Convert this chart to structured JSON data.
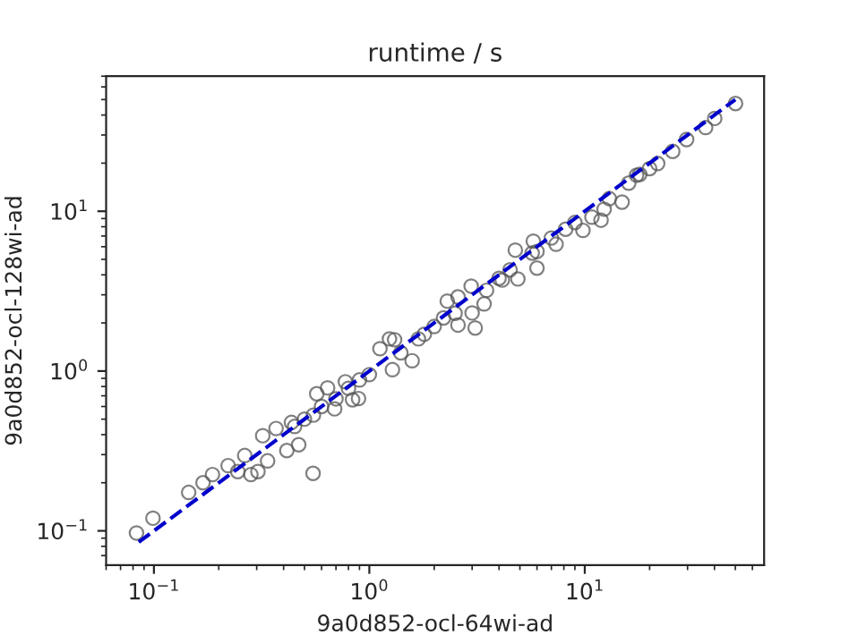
{
  "chart_data": {
    "type": "scatter",
    "title": "runtime / s",
    "xlabel": "9a0d852-ocl-64wi-ad",
    "ylabel": "9a0d852-ocl-128wi-ad",
    "log": "xy",
    "grid": false,
    "legend": false,
    "marker": "circle",
    "xlim": [
      0.06,
      68
    ],
    "ylim": [
      0.061,
      70
    ],
    "xticks": [
      {
        "value": 0.1,
        "label": "10$^{−1}$"
      },
      {
        "value": 1,
        "label": "10$^{0}$"
      },
      {
        "value": 10,
        "label": "10$^{1}$"
      }
    ],
    "yticks": [
      {
        "value": 0.1,
        "label": "10$^{−1}$"
      },
      {
        "value": 1,
        "label": "10$^{0}$"
      },
      {
        "value": 10,
        "label": "10$^{1}$"
      }
    ],
    "series": [
      {
        "color": "#555555",
        "x": [
          0.083,
          0.099,
          0.145,
          0.169,
          0.187,
          0.221,
          0.245,
          0.264,
          0.282,
          0.304,
          0.32,
          0.337,
          0.369,
          0.414,
          0.435,
          0.47,
          0.548,
          0.57,
          0.64,
          0.69,
          0.774,
          0.836,
          0.891,
          1.12,
          1.24,
          1.31,
          1.28,
          1.58,
          1.69,
          2.21,
          2.3,
          2.58,
          2.58,
          3.1,
          3.0,
          2.97,
          3.41,
          4.14,
          4.89,
          4.76,
          5.7,
          6.0,
          5.77,
          7.36,
          8.15,
          9.81,
          10.8,
          11.9,
          12.3,
          14.9,
          17.4,
          21.8,
          25.6,
          29.7,
          36.4,
          40.1,
          50.1,
          0.45,
          0.5,
          0.55,
          0.6,
          0.7,
          0.8,
          0.9,
          1.0,
          1.4,
          1.8,
          2.0,
          2.5,
          3.5,
          4.0,
          4.5,
          6.0,
          7.0,
          9.0,
          13,
          16,
          18,
          20
        ],
        "values": [
          0.097,
          0.12,
          0.174,
          0.2,
          0.225,
          0.256,
          0.235,
          0.296,
          0.225,
          0.235,
          0.394,
          0.274,
          0.437,
          0.318,
          0.477,
          0.346,
          0.229,
          0.721,
          0.785,
          0.58,
          0.857,
          0.661,
          0.673,
          1.38,
          1.59,
          1.57,
          1.02,
          1.16,
          1.59,
          2.15,
          2.74,
          2.91,
          1.94,
          1.86,
          2.31,
          3.4,
          2.63,
          3.71,
          3.77,
          5.71,
          5.47,
          4.41,
          6.5,
          6.22,
          7.72,
          7.59,
          9.18,
          8.79,
          10.3,
          11.4,
          16.8,
          19.9,
          23.7,
          28.1,
          33.4,
          38.1,
          47.2,
          0.45,
          0.5,
          0.53,
          0.6,
          0.67,
          0.78,
          0.88,
          0.95,
          1.3,
          1.7,
          1.9,
          2.3,
          3.2,
          3.8,
          4.3,
          5.6,
          6.8,
          8.5,
          12,
          15,
          17,
          18.5
        ]
      },
      {
        "type": "line",
        "color": "#0000cc",
        "line_style": "dashed",
        "marker": "none",
        "x": [
          0.085,
          50
        ],
        "values": [
          0.085,
          50
        ]
      }
    ]
  }
}
